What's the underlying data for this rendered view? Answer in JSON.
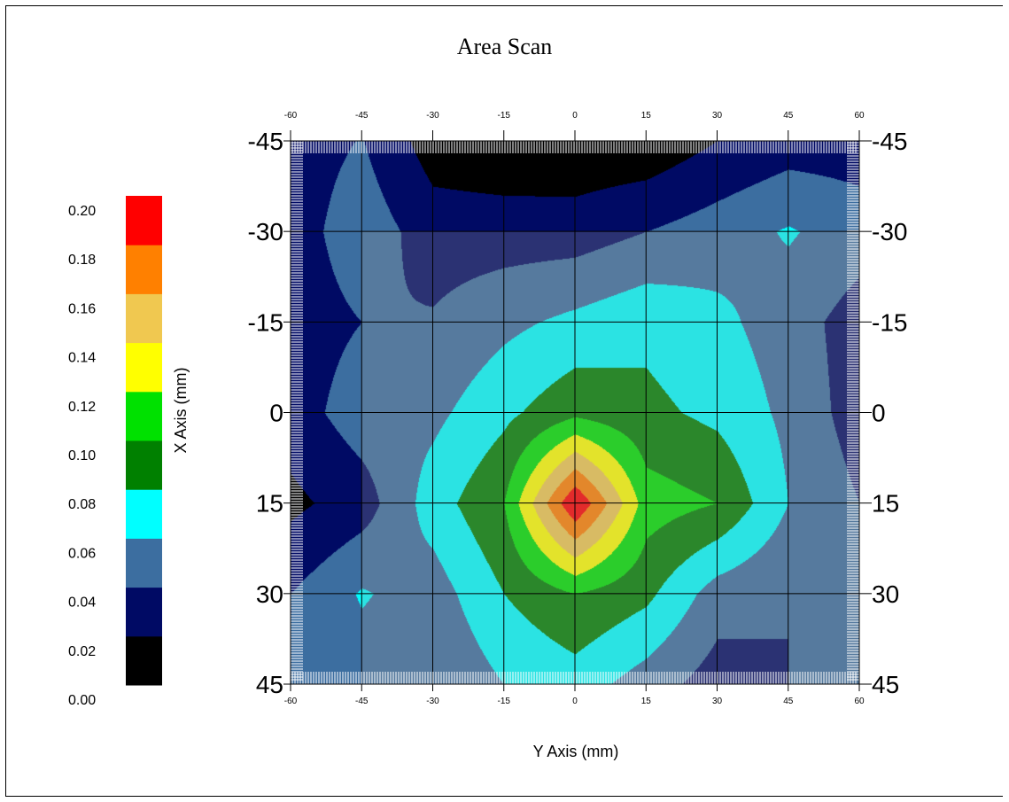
{
  "chart_data": {
    "type": "heatmap",
    "title": "Area Scan",
    "xlabel": "Y Axis (mm)",
    "ylabel": "X Axis (mm)",
    "x_ticks": [
      -60,
      -45,
      -30,
      -15,
      0,
      15,
      30,
      45,
      60
    ],
    "y_ticks": [
      -45,
      -30,
      -15,
      0,
      15,
      30,
      45
    ],
    "xlim": [
      -60,
      60
    ],
    "ylim": [
      -45,
      45
    ],
    "grid": true,
    "colorbar": {
      "ticks": [
        "0.20",
        "0.18",
        "0.16",
        "0.14",
        "0.12",
        "0.10",
        "0.08",
        "0.06",
        "0.04",
        "0.02",
        "0.00"
      ],
      "levels": [
        0.0,
        0.02,
        0.04,
        0.06,
        0.08,
        0.1,
        0.12,
        0.14,
        0.16,
        0.18,
        0.2
      ],
      "colors": [
        "#000000",
        "#000a64",
        "#3c6ea0",
        "#00ffff",
        "#008000",
        "#00e100",
        "#ffff00",
        "#f0c850",
        "#ff8000",
        "#ff0000"
      ]
    },
    "x": [
      -60,
      -45,
      -30,
      -15,
      0,
      15,
      30,
      45,
      60
    ],
    "y": [
      -45,
      -30,
      -15,
      0,
      15,
      30,
      45
    ],
    "values": [
      [
        0.03,
        0.041,
        0.01,
        0.005,
        0.004,
        0.005,
        0.02,
        0.03,
        0.03
      ],
      [
        0.03,
        0.052,
        0.03,
        0.03,
        0.03,
        0.04,
        0.05,
        0.062,
        0.05
      ],
      [
        0.03,
        0.04,
        0.042,
        0.055,
        0.065,
        0.075,
        0.065,
        0.05,
        0.03
      ],
      [
        0.03,
        0.051,
        0.055,
        0.075,
        0.095,
        0.085,
        0.075,
        0.055,
        0.03
      ],
      [
        0.015,
        0.03,
        0.07,
        0.1,
        0.2,
        0.11,
        0.1,
        0.06,
        0.04
      ],
      [
        0.04,
        0.062,
        0.05,
        0.08,
        0.1,
        0.085,
        0.05,
        0.04,
        0.05
      ],
      [
        0.04,
        0.05,
        0.04,
        0.06,
        0.07,
        0.05,
        0.03,
        0.04,
        0.05
      ]
    ]
  }
}
